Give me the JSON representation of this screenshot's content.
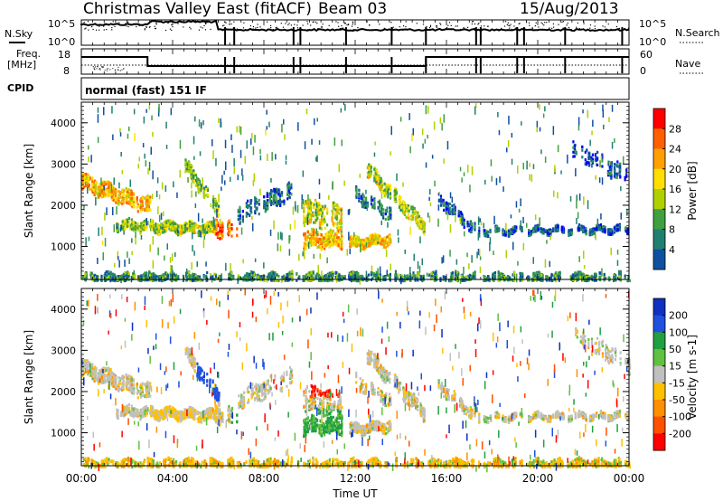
{
  "header": {
    "title": "Christmas Valley East (fitACF)",
    "beam": "Beam 03",
    "date": "15/Aug/2013"
  },
  "panels": {
    "nsky": {
      "left_label": "N.Sky",
      "right_label": "N.Search",
      "left_ticks": [
        "10^5",
        "10^0"
      ],
      "right_ticks": [
        "10^5",
        "10^0"
      ]
    },
    "freq": {
      "left_label_line1": "Freq.",
      "left_label_line2": "[MHz]",
      "right_label": "Nave",
      "left_ticks": [
        "18",
        "8"
      ],
      "right_ticks": [
        "60",
        "0"
      ]
    },
    "cpid": {
      "label": "CPID",
      "program": "normal (fast) 151 IF"
    }
  },
  "chart_data": [
    {
      "type": "heatmap",
      "name": "power",
      "ylabel": "Slant Range [km]",
      "xlabel": "",
      "y_ticks": [
        "4000",
        "3000",
        "2000",
        "1000"
      ],
      "colorbar": {
        "label": "Power [dB]",
        "ticks": [
          "28",
          "24",
          "20",
          "16",
          "12",
          "8",
          "4"
        ],
        "colors": [
          "#ff0000",
          "#ff6000",
          "#ffa000",
          "#ffe000",
          "#b0d000",
          "#40a040",
          "#208070",
          "#1050a0",
          "#0000ff"
        ]
      },
      "x_range": [
        0,
        24
      ],
      "y_range": [
        200,
        4500
      ]
    },
    {
      "type": "heatmap",
      "name": "velocity",
      "ylabel": "Slant Range [km]",
      "xlabel": "Time UT",
      "x_ticks": [
        "00:00",
        "04:00",
        "08:00",
        "12:00",
        "16:00",
        "20:00",
        "00:00"
      ],
      "y_ticks": [
        "4000",
        "3000",
        "2000",
        "1000"
      ],
      "colorbar": {
        "label": "Velocity [m s-1]",
        "ticks": [
          "200",
          "100",
          "50",
          "15",
          "-15",
          "-50",
          "-100",
          "-200"
        ],
        "colors": [
          "#1030c0",
          "#2050e0",
          "#20a040",
          "#60c040",
          "#c0c0c0",
          "#ffc000",
          "#ff9000",
          "#ff5000",
          "#ff0000"
        ]
      },
      "x_range": [
        0,
        24
      ],
      "y_range": [
        200,
        4500
      ]
    }
  ]
}
